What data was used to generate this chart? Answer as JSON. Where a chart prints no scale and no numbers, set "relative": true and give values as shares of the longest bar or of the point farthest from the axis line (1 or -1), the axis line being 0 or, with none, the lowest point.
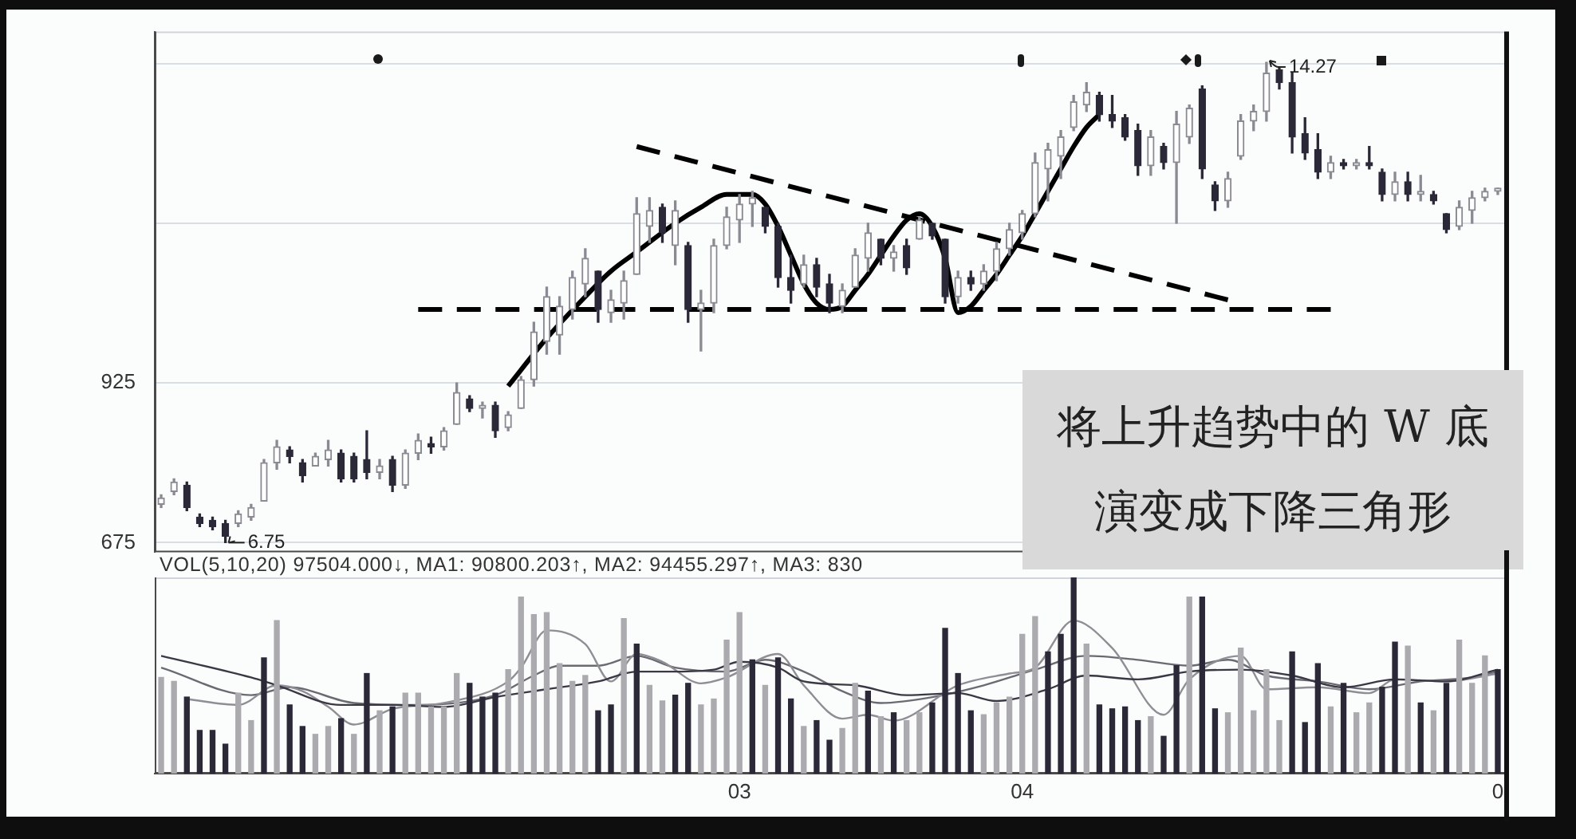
{
  "chart_data": [
    {
      "type": "candlestick",
      "marker": "none",
      "grid": "y",
      "tick_labels": "y",
      "ylim": [
        660,
        1475
      ],
      "yticks": [
        675,
        925,
        {
          "value": 1175,
          "label": null
        },
        {
          "value": 1425,
          "label": null
        }
      ],
      "categories": [
        null,
        null,
        null,
        null,
        null,
        null,
        null,
        null,
        null,
        null,
        null,
        null,
        null,
        null,
        null,
        null,
        null,
        null,
        null,
        null,
        null,
        null,
        null,
        null,
        null,
        null,
        null,
        null,
        null,
        null,
        null,
        null,
        null,
        null,
        null,
        null,
        null,
        null,
        null,
        null,
        null,
        null,
        null,
        null,
        null,
        null,
        null,
        null,
        null,
        null,
        null,
        null,
        null,
        null,
        null,
        null,
        null,
        null,
        null,
        null,
        null,
        null,
        null,
        null,
        null,
        null,
        null,
        null,
        null,
        null,
        null,
        null,
        null,
        null,
        null,
        null,
        null,
        null,
        null,
        null,
        null,
        null,
        null,
        null,
        null,
        null,
        null,
        null,
        null,
        null,
        null,
        null,
        null,
        null,
        null,
        null,
        null,
        null,
        null,
        null,
        null,
        null,
        null,
        null,
        null
      ],
      "ohlc": [
        [
          735,
          750,
          730,
          745
        ],
        [
          755,
          775,
          750,
          770
        ],
        [
          765,
          770,
          725,
          730
        ],
        [
          715,
          720,
          700,
          705
        ],
        [
          710,
          715,
          695,
          700
        ],
        [
          705,
          710,
          675,
          685
        ],
        [
          705,
          725,
          700,
          720
        ],
        [
          715,
          735,
          710,
          730
        ],
        [
          740,
          805,
          740,
          800
        ],
        [
          800,
          835,
          790,
          825
        ],
        [
          820,
          825,
          800,
          810
        ],
        [
          800,
          805,
          770,
          780
        ],
        [
          795,
          815,
          795,
          810
        ],
        [
          805,
          835,
          795,
          820
        ],
        [
          815,
          820,
          770,
          775
        ],
        [
          810,
          815,
          770,
          775
        ],
        [
          805,
          850,
          775,
          785
        ],
        [
          785,
          805,
          775,
          795
        ],
        [
          805,
          810,
          755,
          765
        ],
        [
          765,
          820,
          760,
          815
        ],
        [
          815,
          845,
          805,
          835
        ],
        [
          830,
          840,
          815,
          825
        ],
        [
          825,
          855,
          820,
          850
        ],
        [
          860,
          925,
          860,
          910
        ],
        [
          900,
          905,
          880,
          885
        ],
        [
          885,
          895,
          870,
          890
        ],
        [
          890,
          895,
          840,
          850
        ],
        [
          855,
          880,
          850,
          875
        ],
        [
          885,
          935,
          885,
          930
        ],
        [
          930,
          1020,
          920,
          1005
        ],
        [
          990,
          1075,
          970,
          1060
        ],
        [
          1000,
          1060,
          970,
          1045
        ],
        [
          1040,
          1100,
          1025,
          1090
        ],
        [
          1080,
          1135,
          1060,
          1120
        ],
        [
          1100,
          1100,
          1020,
          1040
        ],
        [
          1035,
          1070,
          1020,
          1055
        ],
        [
          1050,
          1100,
          1025,
          1085
        ],
        [
          1095,
          1215,
          1095,
          1190
        ],
        [
          1170,
          1215,
          1145,
          1195
        ],
        [
          1200,
          1205,
          1145,
          1160
        ],
        [
          1140,
          1210,
          1110,
          1195
        ],
        [
          1140,
          1145,
          1020,
          1040
        ],
        [
          1040,
          1070,
          975,
          1050
        ],
        [
          1050,
          1150,
          1035,
          1140
        ],
        [
          1140,
          1200,
          1135,
          1185
        ],
        [
          1180,
          1220,
          1145,
          1205
        ],
        [
          1205,
          1225,
          1170,
          1215
        ],
        [
          1200,
          1200,
          1160,
          1170
        ],
        [
          1170,
          1175,
          1075,
          1090
        ],
        [
          1090,
          1125,
          1050,
          1070
        ],
        [
          1080,
          1125,
          1075,
          1110
        ],
        [
          1110,
          1120,
          1060,
          1075
        ],
        [
          1080,
          1095,
          1035,
          1050
        ],
        [
          1045,
          1080,
          1035,
          1070
        ],
        [
          1075,
          1135,
          1075,
          1125
        ],
        [
          1120,
          1175,
          1100,
          1160
        ],
        [
          1150,
          1150,
          1110,
          1120
        ],
        [
          1120,
          1140,
          1100,
          1130
        ],
        [
          1140,
          1150,
          1095,
          1105
        ],
        [
          1150,
          1185,
          1150,
          1180
        ],
        [
          1175,
          1175,
          1150,
          1155
        ],
        [
          1150,
          1150,
          1050,
          1060
        ],
        [
          1060,
          1100,
          1050,
          1090
        ],
        [
          1090,
          1100,
          1070,
          1080
        ],
        [
          1080,
          1110,
          1070,
          1100
        ],
        [
          1100,
          1145,
          1085,
          1135
        ],
        [
          1135,
          1175,
          1125,
          1165
        ],
        [
          1160,
          1195,
          1150,
          1190
        ],
        [
          1190,
          1285,
          1185,
          1270
        ],
        [
          1260,
          1300,
          1210,
          1290
        ],
        [
          1280,
          1320,
          1245,
          1310
        ],
        [
          1325,
          1375,
          1320,
          1365
        ],
        [
          1360,
          1395,
          1350,
          1380
        ],
        [
          1375,
          1380,
          1335,
          1345
        ],
        [
          1345,
          1375,
          1325,
          1335
        ],
        [
          1340,
          1345,
          1305,
          1310
        ],
        [
          1320,
          1330,
          1250,
          1265
        ],
        [
          1265,
          1320,
          1250,
          1310
        ],
        [
          1295,
          1300,
          1260,
          1270
        ],
        [
          1270,
          1350,
          1175,
          1330
        ],
        [
          1310,
          1360,
          1300,
          1355
        ],
        [
          1385,
          1390,
          1245,
          1260
        ],
        [
          1235,
          1240,
          1195,
          1210
        ],
        [
          1210,
          1255,
          1200,
          1245
        ],
        [
          1280,
          1345,
          1275,
          1335
        ],
        [
          1335,
          1360,
          1320,
          1350
        ],
        [
          1350,
          1427,
          1335,
          1410
        ],
        [
          1415,
          1420,
          1385,
          1395
        ],
        [
          1395,
          1410,
          1285,
          1310
        ],
        [
          1315,
          1340,
          1275,
          1285
        ],
        [
          1290,
          1315,
          1245,
          1255
        ],
        [
          1255,
          1280,
          1245,
          1270
        ],
        [
          1270,
          1275,
          1260,
          1265
        ],
        [
          1265,
          1275,
          1260,
          1270
        ],
        [
          1270,
          1295,
          1260,
          1265
        ],
        [
          1255,
          1260,
          1210,
          1220
        ],
        [
          1220,
          1255,
          1210,
          1240
        ],
        [
          1240,
          1255,
          1210,
          1220
        ],
        [
          1220,
          1250,
          1210,
          1225
        ],
        [
          1220,
          1225,
          1205,
          1210
        ],
        [
          1190,
          1190,
          1160,
          1165
        ],
        [
          1170,
          1210,
          1165,
          1200
        ],
        [
          1195,
          1225,
          1175,
          1215
        ],
        [
          1215,
          1230,
          1210,
          1225
        ],
        [
          1225,
          1230,
          1220,
          1230
        ]
      ],
      "colors": [
        "#8a8a92",
        "#8a8a92",
        "#2b2838",
        "#2b2838",
        "#2b2838",
        "#2b2838",
        "#8a8a92",
        "#8a8a92",
        "#8a8a92",
        "#8a8a92",
        "#2b2838",
        "#2b2838",
        "#8a8a92",
        "#8a8a92",
        "#2b2838",
        "#2b2838",
        "#2b2838",
        "#8a8a92",
        "#2b2838",
        "#8a8a92",
        "#8a8a92",
        "#2b2838",
        "#8a8a92",
        "#8a8a92",
        "#2b2838",
        "#8a8a92",
        "#2b2838",
        "#8a8a92",
        "#8a8a92",
        "#8a8a92",
        "#8a8a92",
        "#8a8a92",
        "#8a8a92",
        "#8a8a92",
        "#2b2838",
        "#8a8a92",
        "#8a8a92",
        "#8a8a92",
        "#8a8a92",
        "#2b2838",
        "#8a8a92",
        "#2b2838",
        "#8a8a92",
        "#8a8a92",
        "#8a8a92",
        "#8a8a92",
        "#8a8a92",
        "#2b2838",
        "#2b2838",
        "#2b2838",
        "#8a8a92",
        "#2b2838",
        "#2b2838",
        "#8a8a92",
        "#8a8a92",
        "#8a8a92",
        "#2b2838",
        "#8a8a92",
        "#2b2838",
        "#8a8a92",
        "#2b2838",
        "#2b2838",
        "#8a8a92",
        "#2b2838",
        "#8a8a92",
        "#8a8a92",
        "#8a8a92",
        "#8a8a92",
        "#8a8a92",
        "#8a8a92",
        "#8a8a92",
        "#8a8a92",
        "#8a8a92",
        "#2b2838",
        "#2b2838",
        "#2b2838",
        "#2b2838",
        "#8a8a92",
        "#2b2838",
        "#8a8a92",
        "#8a8a92",
        "#2b2838",
        "#2b2838",
        "#8a8a92",
        "#8a8a92",
        "#8a8a92",
        "#8a8a92",
        "#2b2838",
        "#2b2838",
        "#2b2838",
        "#2b2838",
        "#8a8a92",
        "#2b2838",
        "#8a8a92",
        "#2b2838",
        "#2b2838",
        "#8a8a92",
        "#2b2838",
        "#8a8a92",
        "#2b2838",
        "#2b2838",
        "#8a8a92",
        "#8a8a92",
        "#8a8a92",
        "#8a8a92"
      ],
      "series": [
        {
          "type": "line",
          "color": "#000000",
          "line_style": "solid",
          "values": [
            null,
            null,
            null,
            null,
            null,
            null,
            null,
            null,
            null,
            null,
            null,
            null,
            null,
            null,
            null,
            null,
            null,
            null,
            null,
            null,
            null,
            null,
            null,
            null,
            null,
            null,
            null,
            920,
            null,
            null,
            995,
            null,
            null,
            1060,
            null,
            1100,
            null,
            1130,
            null,
            null,
            1175,
            null,
            1200,
            null,
            1220,
            null,
            1220,
            1205,
            1170,
            1125,
            1080,
            1050,
            1040,
            1045,
            1070,
            1095,
            1125,
            1155,
            1180,
            1190,
            1170,
            1120,
            1035,
            1045,
            1070,
            1095,
            1125,
            1155,
            1190,
            1225,
            1260,
            1295,
            1325,
            1345,
            null,
            null,
            null,
            null,
            null,
            null,
            null,
            null,
            null,
            null,
            null,
            null,
            null,
            null,
            null,
            null,
            null,
            null,
            null,
            null,
            null,
            null,
            null,
            null,
            null,
            null,
            null,
            null,
            null,
            null,
            null
          ]
        },
        {
          "type": "line",
          "color": "#000000",
          "line_style": "dashed",
          "values": [
            null,
            null,
            null,
            null,
            null,
            null,
            null,
            null,
            null,
            null,
            null,
            null,
            null,
            null,
            null,
            null,
            null,
            null,
            null,
            null,
            1040,
            null,
            null,
            null,
            null,
            null,
            null,
            null,
            null,
            null,
            null,
            null,
            null,
            null,
            null,
            null,
            null,
            null,
            null,
            null,
            null,
            null,
            null,
            null,
            null,
            null,
            null,
            null,
            null,
            null,
            null,
            null,
            null,
            null,
            null,
            null,
            null,
            null,
            null,
            null,
            null,
            null,
            null,
            null,
            null,
            null,
            null,
            null,
            null,
            null,
            null,
            null,
            null,
            null,
            null,
            null,
            null,
            null,
            null,
            null,
            null,
            null,
            null,
            null,
            null,
            null,
            null,
            null,
            null,
            null,
            null,
            1040,
            null,
            null,
            null,
            null,
            null,
            null,
            null,
            null,
            null,
            null,
            null,
            null,
            null
          ]
        },
        {
          "type": "line",
          "color": "#000000",
          "line_style": "dashed",
          "values": [
            null,
            null,
            null,
            null,
            null,
            null,
            null,
            null,
            null,
            null,
            null,
            null,
            null,
            null,
            null,
            null,
            null,
            null,
            null,
            null,
            null,
            null,
            null,
            null,
            null,
            null,
            null,
            null,
            null,
            null,
            null,
            null,
            null,
            null,
            null,
            null,
            null,
            1295,
            null,
            null,
            null,
            null,
            null,
            null,
            null,
            null,
            null,
            null,
            null,
            null,
            null,
            null,
            null,
            null,
            null,
            null,
            null,
            null,
            null,
            null,
            null,
            null,
            null,
            null,
            null,
            null,
            null,
            null,
            null,
            null,
            null,
            null,
            null,
            null,
            null,
            null,
            null,
            null,
            null,
            null,
            null,
            null,
            null,
            1055,
            null,
            null,
            null,
            null,
            null,
            null,
            null,
            null,
            null,
            null,
            null,
            null,
            null,
            null,
            null,
            null,
            null,
            null,
            null,
            null,
            null
          ]
        }
      ],
      "annotations": [
        "6.75",
        "14.27",
        "将上升趋势中的 W 底",
        "演变成下降三角形"
      ]
    },
    {
      "type": "bar",
      "title": "VOL(5,10,20) 97504.000↓, MA1: 90800.203↑, MA2: 94455.297↑, MA3: 830",
      "relative": true,
      "tick_labels": "x",
      "marker": "none",
      "categories": [
        null,
        null,
        null,
        null,
        null,
        null,
        null,
        null,
        null,
        null,
        null,
        null,
        null,
        null,
        null,
        null,
        null,
        null,
        null,
        null,
        null,
        null,
        null,
        null,
        null,
        null,
        null,
        null,
        null,
        null,
        null,
        null,
        null,
        null,
        null,
        null,
        null,
        null,
        null,
        null,
        null,
        null,
        null,
        null,
        null,
        "03",
        null,
        null,
        null,
        null,
        null,
        null,
        null,
        null,
        null,
        null,
        null,
        null,
        null,
        null,
        null,
        null,
        null,
        null,
        null,
        null,
        null,
        "04",
        null,
        null,
        null,
        null,
        null,
        null,
        null,
        null,
        null,
        null,
        null,
        null,
        null,
        null,
        null,
        null,
        null,
        null,
        null,
        null,
        null,
        null,
        null,
        null,
        null,
        null,
        null,
        null,
        null,
        null,
        null,
        null,
        null,
        null,
        null,
        null,
        "0"
      ],
      "series": [
        {
          "values": [
            0.49,
            0.47,
            0.39,
            0.22,
            0.22,
            0.15,
            0.41,
            0.27,
            0.59,
            0.78,
            0.35,
            0.24,
            0.2,
            0.24,
            0.28,
            0.2,
            0.51,
            0.32,
            0.34,
            0.41,
            0.41,
            0.34,
            0.34,
            0.51,
            0.46,
            0.39,
            0.41,
            0.53,
            0.9,
            0.81,
            0.82,
            0.56,
            0.47,
            0.5,
            0.32,
            0.35,
            0.79,
            0.66,
            0.45,
            0.37,
            0.4,
            0.46,
            0.35,
            0.38,
            0.68,
            0.82,
            0.58,
            0.45,
            0.59,
            0.38,
            0.24,
            0.27,
            0.17,
            0.23,
            0.46,
            0.42,
            0.29,
            0.31,
            0.27,
            0.31,
            0.36,
            0.74,
            0.51,
            0.32,
            0.3,
            0.36,
            0.39,
            0.71,
            0.8,
            0.62,
            0.71,
            1,
            0.66,
            0.35,
            0.33,
            0.34,
            0.27,
            0.29,
            0.19,
            0.55,
            0.9,
            0.9,
            0.33,
            0.31,
            0.64,
            0.32,
            0.53,
            0.27,
            0.62,
            0.26,
            0.56,
            0.34,
            0.46,
            0.31,
            0.36,
            0.44,
            0.67,
            0.65,
            0.36,
            0.32,
            0.46,
            0.68,
            0.46,
            0.6,
            0.53
          ],
          "colors": [
            "#aaaaaf",
            "#aaaaaf",
            "#2b2838",
            "#2b2838",
            "#2b2838",
            "#2b2838",
            "#aaaaaf",
            "#aaaaaf",
            "#2b2838",
            "#aaaaaf",
            "#2b2838",
            "#2b2838",
            "#aaaaaf",
            "#aaaaaf",
            "#2b2838",
            "#aaaaaf",
            "#2b2838",
            "#aaaaaf",
            "#2b2838",
            "#aaaaaf",
            "#aaaaaf",
            "#aaaaaf",
            "#aaaaaf",
            "#aaaaaf",
            "#2b2838",
            "#2b2838",
            "#2b2838",
            "#aaaaaf",
            "#aaaaaf",
            "#aaaaaf",
            "#aaaaaf",
            "#aaaaaf",
            "#aaaaaf",
            "#aaaaaf",
            "#2b2838",
            "#2b2838",
            "#aaaaaf",
            "#2b2838",
            "#aaaaaf",
            "#aaaaaf",
            "#2b2838",
            "#2b2838",
            "#aaaaaf",
            "#aaaaaf",
            "#aaaaaf",
            "#aaaaaf",
            "#2b2838",
            "#aaaaaf",
            "#2b2838",
            "#2b2838",
            "#aaaaaf",
            "#2b2838",
            "#2b2838",
            "#aaaaaf",
            "#aaaaaf",
            "#2b2838",
            "#aaaaaf",
            "#2b2838",
            "#aaaaaf",
            "#aaaaaf",
            "#2b2838",
            "#2b2838",
            "#2b2838",
            "#2b2838",
            "#aaaaaf",
            "#aaaaaf",
            "#aaaaaf",
            "#aaaaaf",
            "#aaaaaf",
            "#2b2838",
            "#2b2838",
            "#2b2838",
            "#aaaaaf",
            "#2b2838",
            "#2b2838",
            "#2b2838",
            "#2b2838",
            "#aaaaaf",
            "#2b2838",
            "#2b2838",
            "#aaaaaf",
            "#2b2838",
            "#2b2838",
            "#aaaaaf",
            "#aaaaaf",
            "#aaaaaf",
            "#aaaaaf",
            "#aaaaaf",
            "#2b2838",
            "#2b2838",
            "#2b2838",
            "#aaaaaf",
            "#2b2838",
            "#aaaaaf",
            "#aaaaaf",
            "#2b2838",
            "#2b2838",
            "#aaaaaf",
            "#2b2838",
            "#aaaaaf",
            "#2b2838",
            "#aaaaaf",
            "#aaaaaf",
            "#aaaaaf",
            "#2b2838"
          ]
        },
        {
          "type": "line",
          "color": "#3a3844",
          "values": [
            0.6,
            null,
            null,
            null,
            null,
            null,
            null,
            0.49,
            null,
            0.45,
            null,
            null,
            null,
            null,
            0.35,
            null,
            null,
            null,
            0.35,
            null,
            null,
            null,
            0.34,
            null,
            null,
            null,
            0.39,
            null,
            null,
            null,
            0.43,
            null,
            null,
            null,
            0.47,
            null,
            null,
            0.52,
            null,
            null,
            0.52,
            null,
            null,
            0.53,
            null,
            0.57,
            null,
            null,
            0.54,
            null,
            0.47,
            null,
            null,
            null,
            0.45,
            null,
            null,
            null,
            0.4,
            null,
            null,
            null,
            0.41,
            null,
            null,
            0.37,
            null,
            null,
            null,
            0.43,
            null,
            null,
            0.5,
            null,
            null,
            null,
            0.48,
            null,
            null,
            null,
            0.52,
            null,
            null,
            null,
            0.53,
            null,
            null,
            null,
            0.5,
            null,
            null,
            null,
            0.44,
            null,
            null,
            null,
            0.48,
            null,
            null,
            null,
            0.47,
            null,
            null,
            null,
            0.53
          ]
        },
        {
          "type": "line",
          "color": "#8e8e94",
          "values": [
            null,
            null,
            0.38,
            null,
            null,
            null,
            0.35,
            null,
            null,
            0.45,
            null,
            0.42,
            null,
            0.34,
            null,
            0.25,
            null,
            null,
            0.33,
            null,
            null,
            null,
            0.36,
            null,
            null,
            null,
            null,
            0.47,
            0.54,
            null,
            0.73,
            null,
            null,
            0.66,
            null,
            0.47,
            null,
            0.61,
            null,
            0.57,
            null,
            null,
            0.46,
            null,
            0.49,
            null,
            null,
            null,
            0.61,
            null,
            0.45,
            null,
            null,
            0.28,
            null,
            0.3,
            null,
            0.27,
            null,
            null,
            null,
            null,
            0.45,
            null,
            null,
            null,
            0.51,
            null,
            0.54,
            null,
            null,
            0.78,
            null,
            null,
            0.64,
            null,
            null,
            null,
            0.3,
            null,
            0.48,
            null,
            null,
            null,
            0.6,
            null,
            0.43,
            null,
            null,
            null,
            0.44,
            null,
            null,
            null,
            0.41,
            null,
            0.48,
            null,
            null,
            null,
            0.47,
            null,
            null,
            null,
            0.51
          ]
        },
        {
          "type": "line",
          "color": "#6a6a72",
          "values": [
            0.54,
            null,
            null,
            null,
            null,
            null,
            null,
            0.4,
            null,
            null,
            0.44,
            null,
            null,
            null,
            null,
            0.36,
            null,
            null,
            null,
            null,
            0.35,
            null,
            null,
            null,
            null,
            null,
            0.4,
            null,
            null,
            0.5,
            null,
            0.55,
            null,
            null,
            0.55,
            null,
            null,
            0.6,
            null,
            null,
            0.54,
            null,
            null,
            null,
            0.52,
            null,
            null,
            0.58,
            null,
            null,
            0.52,
            null,
            null,
            0.42,
            null,
            null,
            0.36,
            null,
            null,
            null,
            0.39,
            null,
            null,
            null,
            0.45,
            null,
            null,
            null,
            0.53,
            null,
            null,
            null,
            0.6,
            null,
            null,
            null,
            0.58,
            null,
            null,
            null,
            0.55,
            null,
            null,
            0.58,
            null,
            null,
            0.5,
            null,
            null,
            null,
            0.47,
            null,
            null,
            null,
            0.43,
            null,
            null,
            null,
            0.47,
            null,
            null,
            null,
            0.49,
            null,
            0.52
          ]
        }
      ]
    }
  ]
}
